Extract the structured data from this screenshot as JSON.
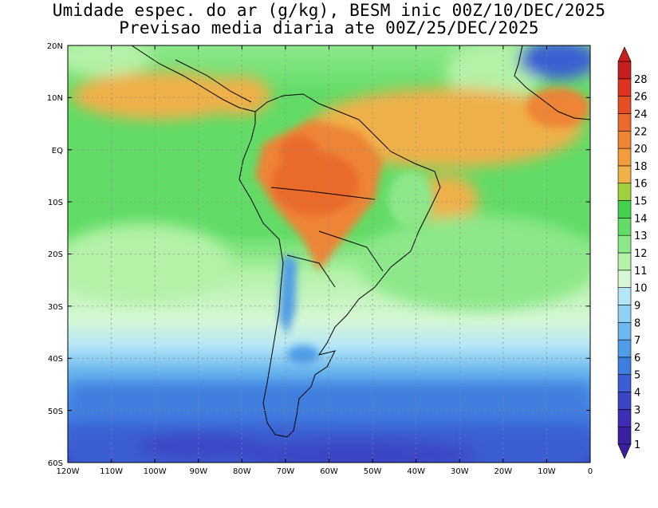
{
  "title": {
    "line1": "Umidade espec. do ar (g/kg), BESM inic 00Z/10/DEC/2025",
    "line2": "Previsao media diaria ate 00Z/25/DEC/2025"
  },
  "map": {
    "lon_labels": [
      "120W",
      "110W",
      "100W",
      "90W",
      "80W",
      "70W",
      "60W",
      "50W",
      "40W",
      "30W",
      "20W",
      "10W",
      "0"
    ],
    "lat_labels": [
      "20N",
      "10N",
      "EQ",
      "10S",
      "20S",
      "30S",
      "40S",
      "50S",
      "60S"
    ]
  },
  "colorbar": {
    "labels": [
      "1",
      "2",
      "3",
      "4",
      "5",
      "6",
      "7",
      "8",
      "9",
      "10",
      "11",
      "12",
      "13",
      "14",
      "15",
      "16",
      "18",
      "20",
      "22",
      "24",
      "26",
      "28"
    ],
    "colors": [
      "#3a1fa0",
      "#3d2eb3",
      "#3b44c4",
      "#3b5fd2",
      "#3f7ee0",
      "#4f9de8",
      "#6cb8ef",
      "#8fd0f4",
      "#b4e6f7",
      "#d6f7d6",
      "#b4f2a8",
      "#8ce88a",
      "#62dc66",
      "#44d04e",
      "#9ed040",
      "#f0b04a",
      "#f29c3c",
      "#ee8434",
      "#ea6a2c",
      "#e44e24",
      "#dc3420",
      "#c81e1e"
    ]
  },
  "chart_data": {
    "type": "heatmap",
    "variable": "Umidade espec. do ar (g/kg)",
    "x_range": [
      -120,
      0
    ],
    "y_range": [
      -60,
      20
    ],
    "levels": [
      1,
      2,
      3,
      4,
      5,
      6,
      7,
      8,
      9,
      10,
      11,
      12,
      13,
      14,
      15,
      16,
      18,
      20,
      22,
      24,
      26,
      28
    ]
  }
}
